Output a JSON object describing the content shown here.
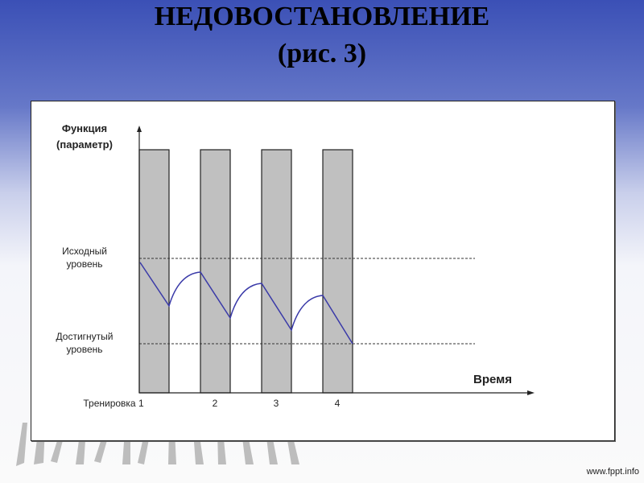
{
  "slide": {
    "title_line1": "НЕДОВОСТАНОВЛЕНИЕ",
    "title_line2": "(рис. 3)",
    "footer": "www.fppt.info",
    "decoration": "walking-legs-silhouettes"
  },
  "diagram": {
    "y_axis_label_line1": "Функция",
    "y_axis_label_line2": "(параметр)",
    "x_axis_label": "Время",
    "initial_level_line1": "Исходный",
    "initial_level_line2": "уровень",
    "reached_level_line1": "Достигнутый",
    "reached_level_line2": "уровень",
    "training_labels": [
      "Тренировка 1",
      "2",
      "3",
      "4"
    ],
    "colors": {
      "bars": "#c0c0c0",
      "curve": "#3a3aa8"
    }
  }
}
